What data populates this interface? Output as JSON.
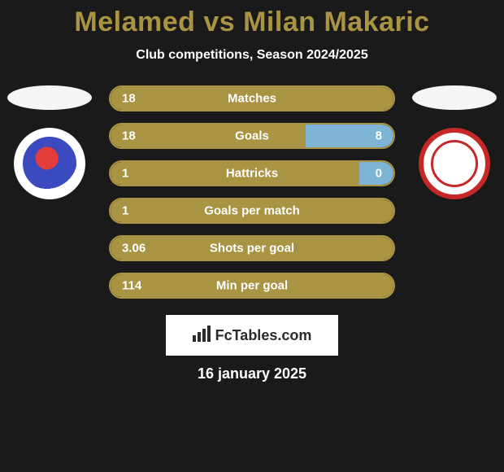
{
  "title": "Melamed vs Milan Makaric",
  "subtitle": "Club competitions, Season 2024/2025",
  "date": "16 january 2025",
  "footer_brand": "FcTables.com",
  "colors": {
    "left": "#a89443",
    "right": "#7eb5d6",
    "border_left": "#a89443",
    "border_right": "#7eb5d6",
    "background": "#1a1a1a",
    "title_color": "#a89443"
  },
  "stats": [
    {
      "label": "Matches",
      "left_text": "18",
      "right_text": "",
      "left_pct": 100,
      "right_pct": 0,
      "show_right": false
    },
    {
      "label": "Goals",
      "left_text": "18",
      "right_text": "8",
      "left_pct": 69,
      "right_pct": 31,
      "show_right": true
    },
    {
      "label": "Hattricks",
      "left_text": "1",
      "right_text": "0",
      "left_pct": 88,
      "right_pct": 12,
      "show_right": true
    },
    {
      "label": "Goals per match",
      "left_text": "1",
      "right_text": "",
      "left_pct": 100,
      "right_pct": 0,
      "show_right": false
    },
    {
      "label": "Shots per goal",
      "left_text": "3.06",
      "right_text": "",
      "left_pct": 100,
      "right_pct": 0,
      "show_right": false
    },
    {
      "label": "Min per goal",
      "left_text": "114",
      "right_text": "",
      "left_pct": 100,
      "right_pct": 0,
      "show_right": false
    }
  ]
}
